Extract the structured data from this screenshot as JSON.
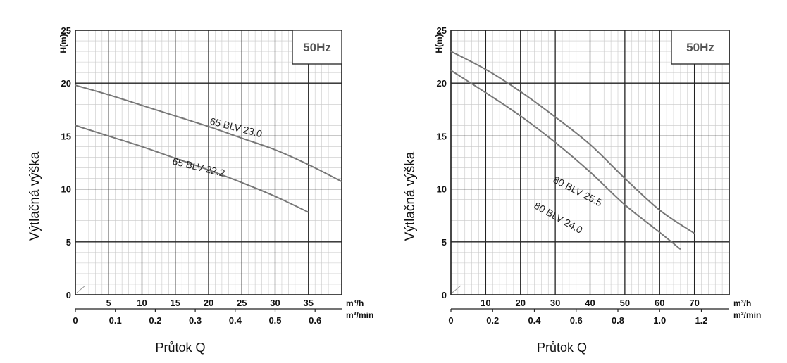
{
  "chart_data": [
    {
      "type": "line",
      "ylabel": "Výtlačná výška",
      "ylabel_unit": "H(m)",
      "xlabel": "Průtok Q",
      "x_unit_top": "m³/h",
      "x_unit_bottom": "m³/min",
      "badge": "50Hz",
      "ylim": [
        0,
        25
      ],
      "xlim": [
        0,
        40
      ],
      "y_ticks": [
        "0",
        "5",
        "10",
        "15",
        "20",
        "25"
      ],
      "x_top_ticks": [
        "5",
        "10",
        "15",
        "20",
        "25",
        "30",
        "35"
      ],
      "x_bottom_ticks": [
        "0",
        "0.1",
        "0.2",
        "0.3",
        "0.4",
        "0.5",
        "0.6"
      ],
      "grid": true,
      "series": [
        {
          "name": "65 BLV 23.0",
          "x": [
            0,
            5,
            10,
            15,
            20,
            25,
            30,
            35,
            40
          ],
          "y": [
            19.8,
            18.9,
            17.9,
            16.9,
            15.9,
            14.8,
            13.7,
            12.3,
            10.7
          ]
        },
        {
          "name": "65 BLV 22.2",
          "x": [
            0,
            5,
            10,
            15,
            20,
            25,
            30,
            35
          ],
          "y": [
            16.0,
            15.0,
            14.0,
            12.9,
            11.8,
            10.6,
            9.3,
            7.8
          ]
        }
      ]
    },
    {
      "type": "line",
      "ylabel": "Výtlačná výška",
      "ylabel_unit": "H(m)",
      "xlabel": "Průtok Q",
      "x_unit_top": "m³/h",
      "x_unit_bottom": "m³/min",
      "badge": "50Hz",
      "ylim": [
        0,
        25
      ],
      "xlim": [
        0,
        80
      ],
      "y_ticks": [
        "0",
        "5",
        "10",
        "15",
        "20",
        "25"
      ],
      "x_top_ticks": [
        "10",
        "20",
        "30",
        "40",
        "50",
        "60",
        "70"
      ],
      "x_bottom_ticks": [
        "0",
        "0.2",
        "0.4",
        "0.6",
        "0.8",
        "1.0",
        "1.2"
      ],
      "grid": true,
      "series": [
        {
          "name": "80 BLV 25.5",
          "x": [
            0,
            10,
            20,
            30,
            40,
            50,
            60,
            70
          ],
          "y": [
            23.0,
            21.3,
            19.2,
            16.8,
            14.2,
            11.0,
            8.0,
            5.8
          ]
        },
        {
          "name": "80 BLV 24.0",
          "x": [
            0,
            10,
            20,
            30,
            40,
            50,
            60,
            66
          ],
          "y": [
            21.2,
            19.1,
            16.9,
            14.4,
            11.6,
            8.5,
            5.9,
            4.3
          ]
        }
      ]
    }
  ]
}
